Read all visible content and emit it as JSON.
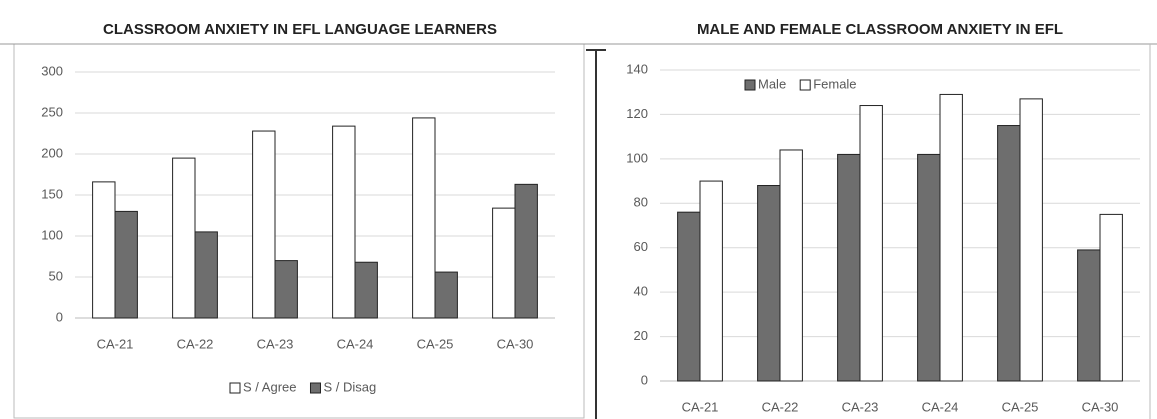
{
  "chart_data": [
    {
      "type": "bar",
      "title": "CLASSROOM ANXIETY IN EFL LANGUAGE LEARNERS",
      "categories": [
        "CA-21",
        "CA-22",
        "CA-23",
        "CA-24",
        "CA-25",
        "CA-30"
      ],
      "series": [
        {
          "name": "S / Agree",
          "color": "#ffffff",
          "values": [
            166,
            195,
            228,
            234,
            244,
            134
          ]
        },
        {
          "name": "S / Disag",
          "color": "#6e6e6e",
          "values": [
            130,
            105,
            70,
            68,
            56,
            163
          ]
        }
      ],
      "ylim": [
        0,
        300
      ],
      "yticks": [
        0,
        50,
        100,
        150,
        200,
        250,
        300
      ],
      "grid": true,
      "legend": "bottom"
    },
    {
      "type": "bar",
      "title": "MALE AND FEMALE CLASSROOM ANXIETY IN EFL",
      "categories": [
        "CA-21",
        "CA-22",
        "CA-23",
        "CA-24",
        "CA-25",
        "CA-30"
      ],
      "series": [
        {
          "name": "Male",
          "color": "#6e6e6e",
          "values": [
            76,
            88,
            102,
            102,
            115,
            59
          ]
        },
        {
          "name": "Female",
          "color": "#ffffff",
          "values": [
            90,
            104,
            124,
            129,
            127,
            75
          ]
        }
      ],
      "ylim": [
        0,
        140
      ],
      "yticks": [
        0,
        20,
        40,
        60,
        80,
        100,
        120,
        140
      ],
      "grid": true,
      "legend": "top-left"
    }
  ]
}
